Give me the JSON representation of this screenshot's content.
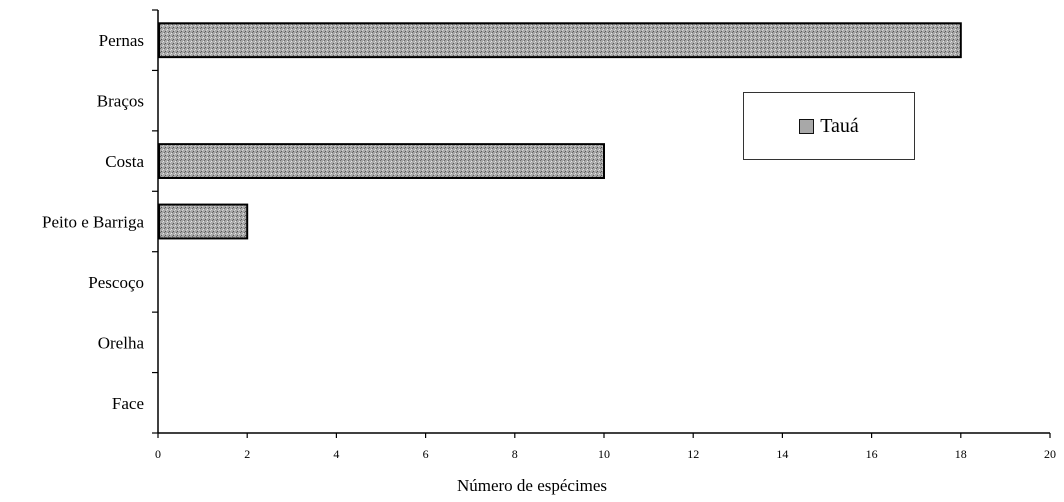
{
  "chart_data": {
    "type": "bar",
    "orientation": "horizontal",
    "categories": [
      "Pernas",
      "Braços",
      "Costa",
      "Peito e Barriga",
      "Pescoço",
      "Orelha",
      "Face"
    ],
    "series": [
      {
        "name": "Tauá",
        "values": [
          18,
          0,
          10,
          2,
          0,
          0,
          0
        ]
      }
    ],
    "xlabel": "Número de espécimes",
    "ylabel": "",
    "title": "",
    "xlim": [
      0,
      20
    ],
    "xticks": [
      "0",
      "2",
      "4",
      "6",
      "8",
      "10",
      "12",
      "14",
      "16",
      "18",
      "20"
    ],
    "grid": false,
    "legend_position": "top-right",
    "bar_color": "#a8a8a8"
  }
}
